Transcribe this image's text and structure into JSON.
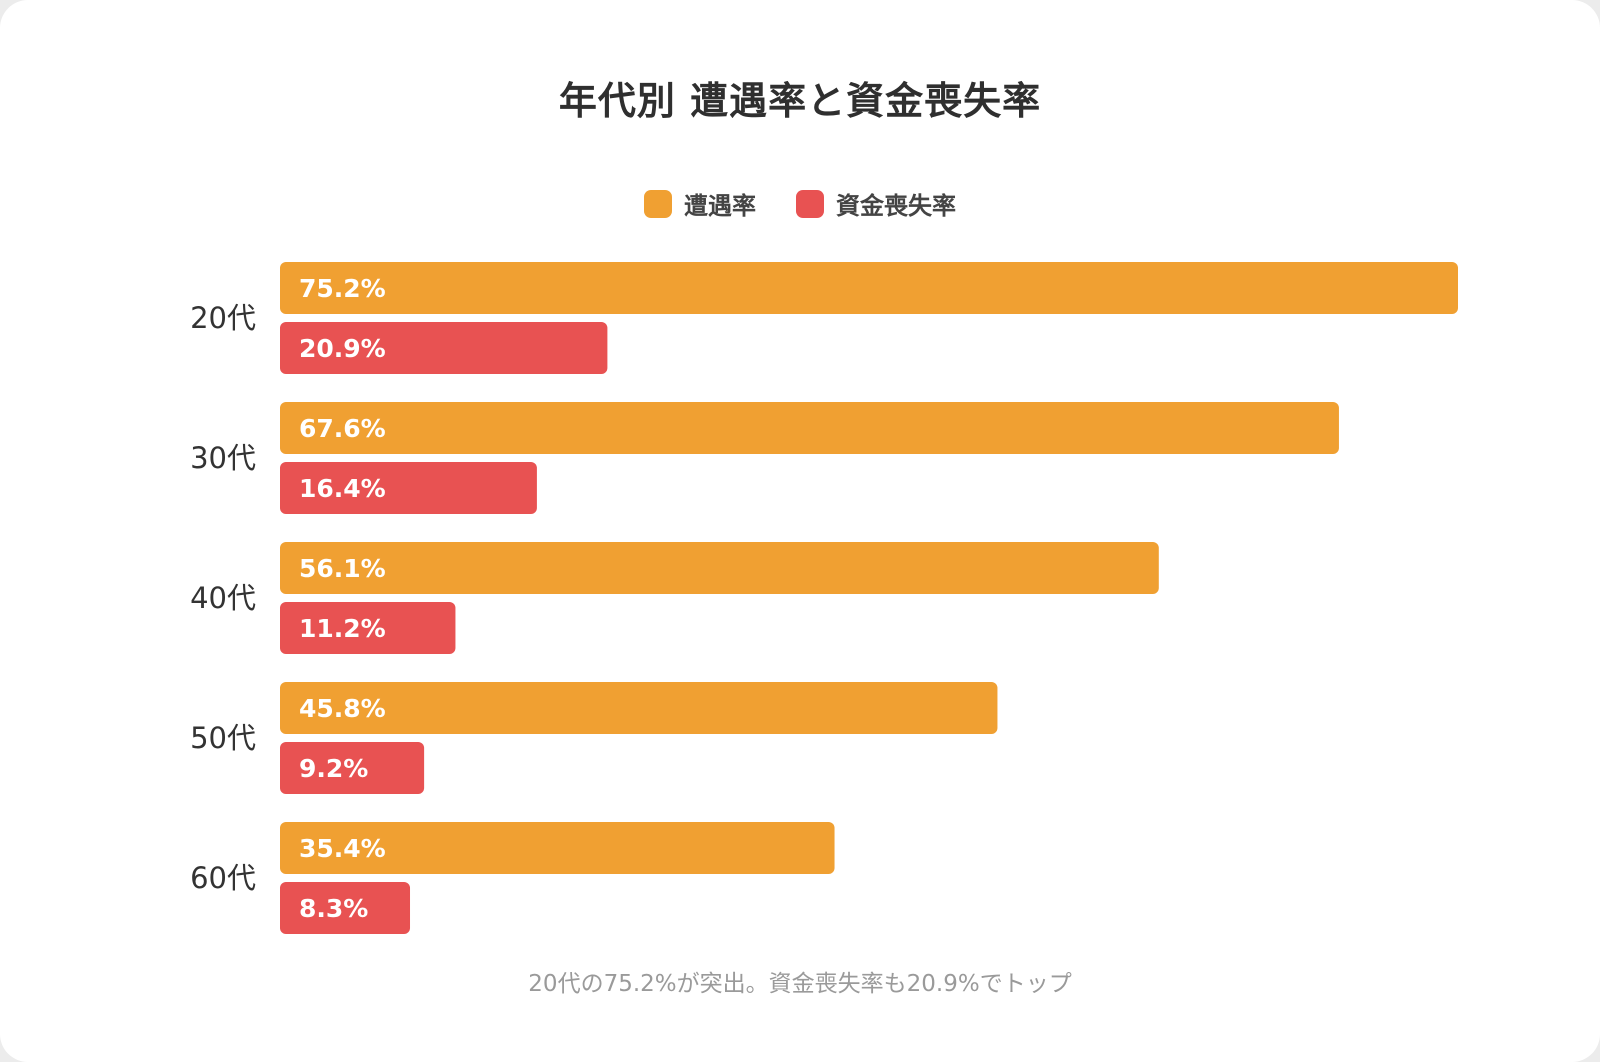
{
  "chart_data": {
    "type": "bar",
    "orientation": "horizontal",
    "title": "年代別 遭遇率と資金喪失率",
    "categories": [
      "20代",
      "30代",
      "40代",
      "50代",
      "60代"
    ],
    "series": [
      {
        "name": "遭遇率",
        "color": "#f0a032",
        "values": [
          75.2,
          67.6,
          56.1,
          45.8,
          35.4
        ],
        "labels": [
          "75.2%",
          "67.6%",
          "56.1%",
          "45.8%",
          "35.4%"
        ]
      },
      {
        "name": "資金喪失率",
        "color": "#e85252",
        "values": [
          20.9,
          16.4,
          11.2,
          9.2,
          8.3
        ],
        "labels": [
          "20.9%",
          "16.4%",
          "11.2%",
          "9.2%",
          "8.3%"
        ]
      }
    ],
    "xlim": [
      0,
      75.2
    ],
    "legend_position": "top-center",
    "grid": false,
    "annotation": "20代の75.2%が突出。資金喪失率も20.9%でトップ"
  }
}
